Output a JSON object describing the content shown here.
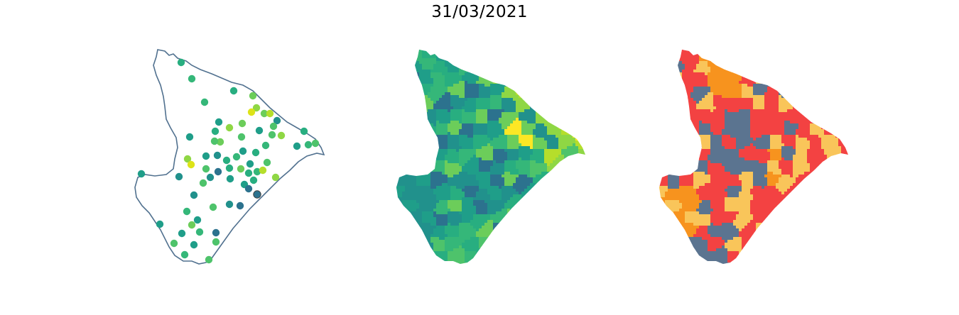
{
  "figure": {
    "title": "31/03/2021"
  },
  "palette": {
    "viridis": [
      "#440154",
      "#2c728e",
      "#21918c",
      "#1f9e89",
      "#28ae80",
      "#35b779",
      "#4ec36b",
      "#6ccd5a",
      "#8fd744",
      "#b5de2b",
      "#dde318",
      "#fde725"
    ],
    "risk": {
      "red": "#f34242",
      "orange": "#f7931e",
      "yellow": "#f9c55a",
      "slate": "#5b7490"
    },
    "outline": "#51718f"
  },
  "panels": [
    {
      "id": "points",
      "type": "point-map"
    },
    {
      "id": "choropleth",
      "type": "choropleth",
      "scale": "viridis"
    },
    {
      "id": "risk",
      "type": "choropleth",
      "scale": "risk-category"
    }
  ]
}
